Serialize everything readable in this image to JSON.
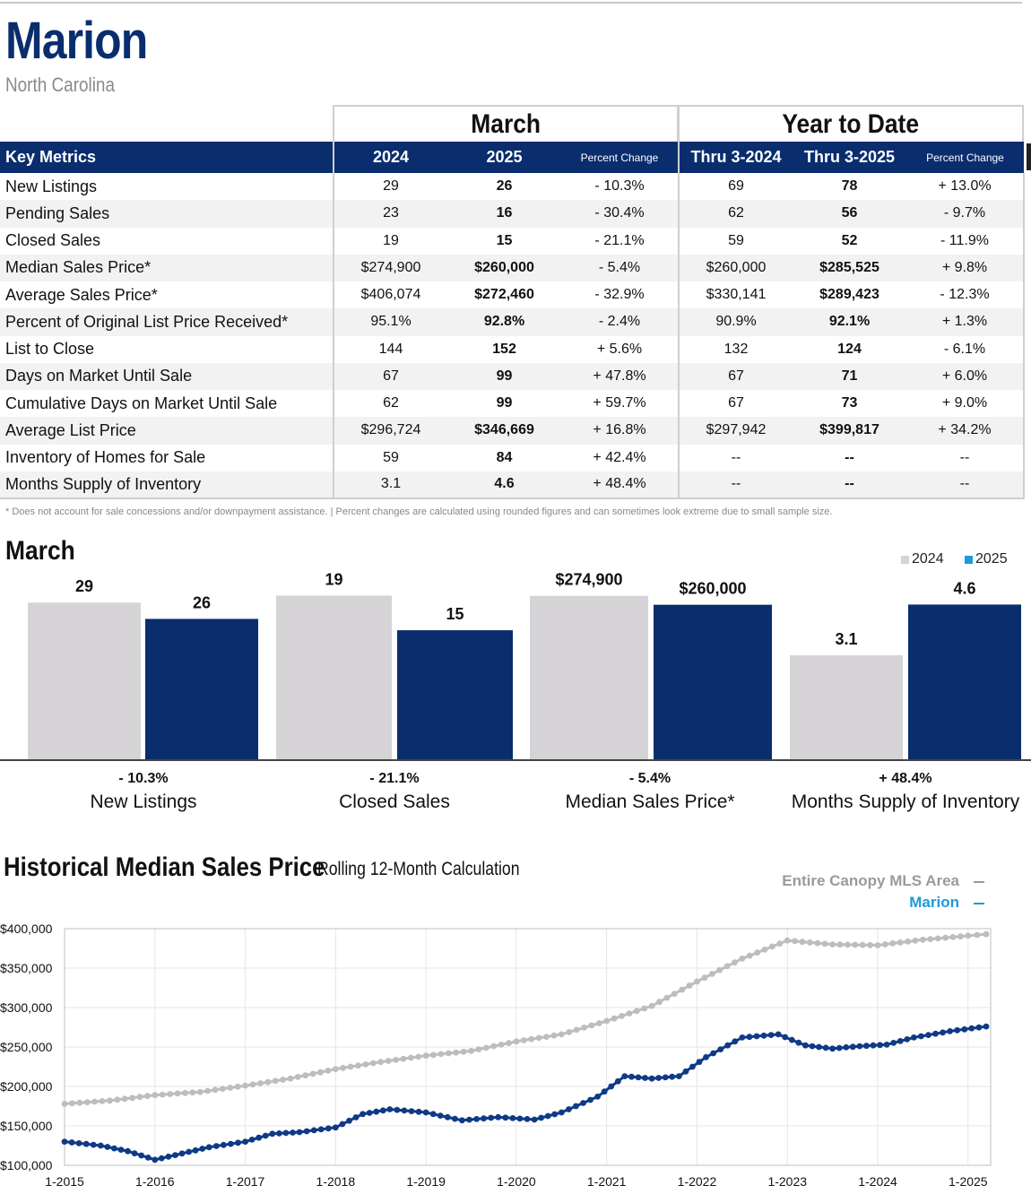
{
  "header": {
    "city": "Marion",
    "state": "North Carolina"
  },
  "table": {
    "march_heading": "March",
    "ytd_heading": "Year to Date",
    "columns": [
      "Key Metrics",
      "2024",
      "2025",
      "Percent Change",
      "Thru 3-2024",
      "Thru 3-2025",
      "Percent Change"
    ],
    "rows": [
      [
        "New Listings",
        "29",
        "26",
        "- 10.3%",
        "69",
        "78",
        "+ 13.0%"
      ],
      [
        "Pending Sales",
        "23",
        "16",
        "- 30.4%",
        "62",
        "56",
        "- 9.7%"
      ],
      [
        "Closed Sales",
        "19",
        "15",
        "- 21.1%",
        "59",
        "52",
        "- 11.9%"
      ],
      [
        "Median Sales Price*",
        "$274,900",
        "$260,000",
        "- 5.4%",
        "$260,000",
        "$285,525",
        "+ 9.8%"
      ],
      [
        "Average Sales Price*",
        "$406,074",
        "$272,460",
        "- 32.9%",
        "$330,141",
        "$289,423",
        "- 12.3%"
      ],
      [
        "Percent of Original List Price Received*",
        "95.1%",
        "92.8%",
        "- 2.4%",
        "90.9%",
        "92.1%",
        "+ 1.3%"
      ],
      [
        "List to Close",
        "144",
        "152",
        "+ 5.6%",
        "132",
        "124",
        "- 6.1%"
      ],
      [
        "Days on Market Until Sale",
        "67",
        "99",
        "+ 47.8%",
        "67",
        "71",
        "+ 6.0%"
      ],
      [
        "Cumulative Days on Market Until Sale",
        "62",
        "99",
        "+ 59.7%",
        "67",
        "73",
        "+ 9.0%"
      ],
      [
        "Average List Price",
        "$296,724",
        "$346,669",
        "+ 16.8%",
        "$297,942",
        "$399,817",
        "+ 34.2%"
      ],
      [
        "Inventory of Homes for Sale",
        "59",
        "84",
        "+ 42.4%",
        "--",
        "--",
        "--"
      ],
      [
        "Months Supply of Inventory",
        "3.1",
        "4.6",
        "+ 48.4%",
        "--",
        "--",
        "--"
      ]
    ],
    "footnote": "* Does not account for sale concessions and/or downpayment assistance.  |  Percent changes are calculated using rounded figures and can sometimes look extreme due to small sample size."
  },
  "colors": {
    "navy": "#0a2d6e",
    "gray_bar": "#d6d3d7",
    "canopy_line": "#bdbdbd",
    "marion_line": "#0f3a85",
    "legend_2025": "#1e9ad6"
  },
  "chart_data": [
    {
      "type": "bar",
      "title": "March",
      "legend": [
        "2024",
        "2025"
      ],
      "groups": [
        {
          "category": "New Listings",
          "pct_change": "- 10.3%",
          "v2024": 29,
          "v2025": 26,
          "label2024": "29",
          "label2025": "26",
          "scale_max": 33
        },
        {
          "category": "Closed Sales",
          "pct_change": "- 21.1%",
          "v2024": 19,
          "v2025": 15,
          "label2024": "19",
          "label2025": "15",
          "scale_max": 20.7
        },
        {
          "category": "Median Sales Price*",
          "pct_change": "- 5.4%",
          "v2024": 274900,
          "v2025": 260000,
          "label2024": "$274,900",
          "label2025": "$260,000",
          "scale_max": 300000
        },
        {
          "category": "Months Supply of Inventory",
          "pct_change": "+ 48.4%",
          "v2024": 3.1,
          "v2025": 4.6,
          "label2024": "3.1",
          "label2025": "4.6",
          "scale_max": 5.3
        }
      ]
    },
    {
      "type": "line",
      "title": "Historical Median Sales Price",
      "subtitle": "Rolling 12-Month Calculation",
      "ylim": [
        100000,
        400000
      ],
      "yticks": [
        "$400,000",
        "$350,000",
        "$300,000",
        "$250,000",
        "$200,000",
        "$150,000",
        "$100,000"
      ],
      "xticks": [
        "1-2015",
        "1-2016",
        "1-2017",
        "1-2018",
        "1-2019",
        "1-2020",
        "1-2021",
        "1-2022",
        "1-2023",
        "1-2024",
        "1-2025"
      ],
      "x_start": 2015.0,
      "x_end": 2025.25,
      "series": [
        {
          "name": "Entire Canopy MLS Area",
          "points": [
            [
              2015.0,
              178000
            ],
            [
              2015.5,
              182000
            ],
            [
              2016.0,
              189000
            ],
            [
              2016.5,
              193000
            ],
            [
              2017.0,
              201000
            ],
            [
              2017.5,
              210000
            ],
            [
              2018.0,
              222000
            ],
            [
              2018.5,
              231000
            ],
            [
              2019.0,
              239000
            ],
            [
              2019.5,
              245000
            ],
            [
              2020.0,
              257000
            ],
            [
              2020.5,
              266000
            ],
            [
              2021.0,
              283000
            ],
            [
              2021.5,
              302000
            ],
            [
              2022.0,
              333000
            ],
            [
              2022.5,
              362000
            ],
            [
              2023.0,
              385000
            ],
            [
              2023.5,
              380000
            ],
            [
              2024.0,
              379000
            ],
            [
              2024.5,
              386000
            ],
            [
              2025.0,
              391000
            ],
            [
              2025.2,
              393000
            ]
          ]
        },
        {
          "name": "Marion",
          "points": [
            [
              2015.0,
              130000
            ],
            [
              2015.4,
              125000
            ],
            [
              2015.7,
              118000
            ],
            [
              2016.0,
              107000
            ],
            [
              2016.3,
              115000
            ],
            [
              2016.6,
              123000
            ],
            [
              2017.0,
              130000
            ],
            [
              2017.3,
              140000
            ],
            [
              2017.6,
              142000
            ],
            [
              2018.0,
              148000
            ],
            [
              2018.3,
              165000
            ],
            [
              2018.6,
              171000
            ],
            [
              2019.0,
              167000
            ],
            [
              2019.4,
              157000
            ],
            [
              2019.8,
              161000
            ],
            [
              2020.2,
              158000
            ],
            [
              2020.5,
              167000
            ],
            [
              2020.9,
              187000
            ],
            [
              2021.2,
              213000
            ],
            [
              2021.5,
              210000
            ],
            [
              2021.8,
              213000
            ],
            [
              2022.1,
              237000
            ],
            [
              2022.5,
              262000
            ],
            [
              2022.9,
              266000
            ],
            [
              2023.2,
              252000
            ],
            [
              2023.5,
              248000
            ],
            [
              2023.8,
              251000
            ],
            [
              2024.1,
              253000
            ],
            [
              2024.4,
              262000
            ],
            [
              2024.8,
              270000
            ],
            [
              2025.2,
              276000
            ]
          ]
        }
      ]
    }
  ]
}
